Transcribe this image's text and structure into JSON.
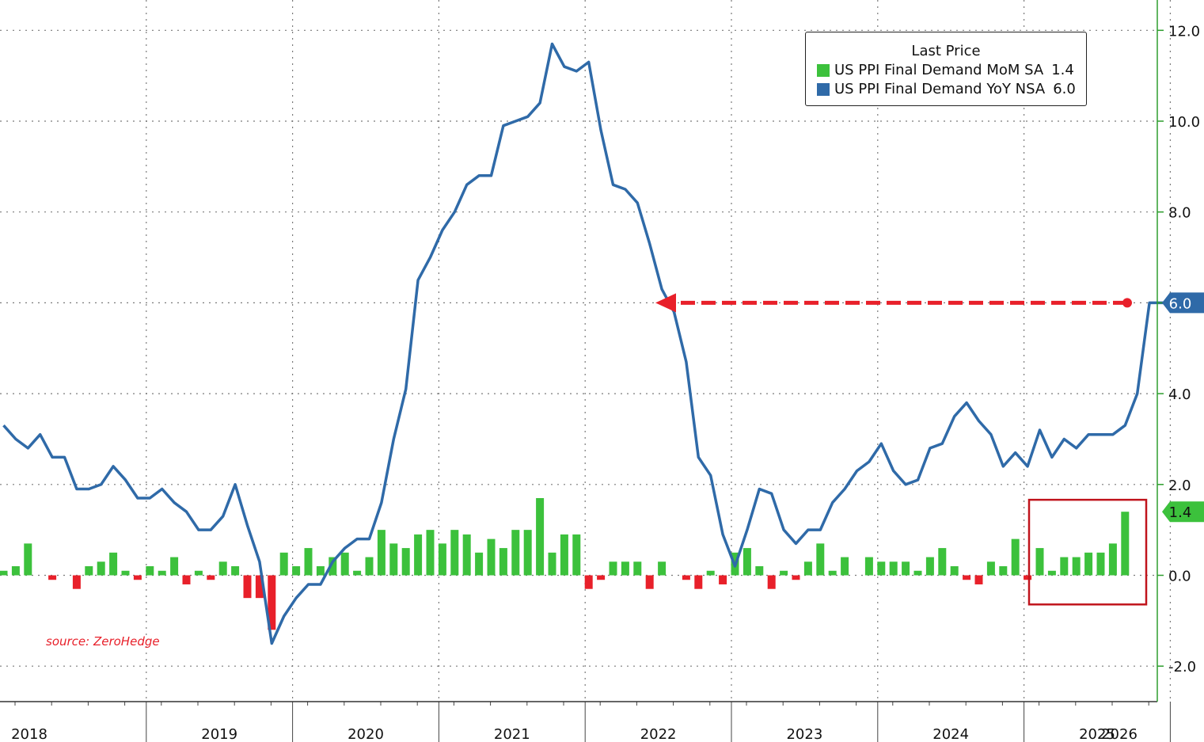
{
  "source_note": "source: ZeroHedge",
  "legend": {
    "title": "Last Price",
    "items": [
      {
        "label": "US PPI Final Demand MoM SA",
        "value": "1.4",
        "color": "#3cc13c"
      },
      {
        "label": "US PPI Final Demand YoY NSA",
        "value": "6.0",
        "color": "#2f6aa8"
      }
    ]
  },
  "badges": {
    "yoy_last": "6.0",
    "mom_last": "1.4"
  },
  "chart_data": {
    "type": "bar+line",
    "title": "",
    "xlabel": "",
    "ylabel": "",
    "ylim": [
      -2.8,
      12.6
    ],
    "yticks": [
      -2.0,
      0.0,
      2.0,
      4.0,
      6.0,
      8.0,
      10.0,
      12.0
    ],
    "ytick_labels": [
      "-2.0",
      "0.0",
      "2.0",
      "4.0",
      "6.0",
      "8.0",
      "10.0",
      "12.0"
    ],
    "year_labels": [
      "2018",
      "2019",
      "2020",
      "2021",
      "2022",
      "2023",
      "2024",
      "2025",
      "2026"
    ],
    "x_start": "2018-01",
    "x_end": "2026-04",
    "grid": true,
    "legend_position": "top-right",
    "positive_bar_color": "#3cc13c",
    "negative_bar_color": "#e8202a",
    "series": [
      {
        "name": "US PPI Final Demand MoM SA",
        "type": "bar",
        "dates": [
          "2018-01",
          "2018-02",
          "2018-03",
          "2018-04",
          "2018-05",
          "2018-06",
          "2018-07",
          "2018-08",
          "2018-09",
          "2018-10",
          "2018-11",
          "2018-12",
          "2019-01",
          "2019-02",
          "2019-03",
          "2019-04",
          "2019-05",
          "2019-06",
          "2019-07",
          "2019-08",
          "2019-09",
          "2019-10",
          "2019-11",
          "2019-12",
          "2020-01",
          "2020-02",
          "2020-03",
          "2020-04",
          "2020-05",
          "2020-06",
          "2020-07",
          "2020-08",
          "2020-09",
          "2020-10",
          "2020-11",
          "2020-12",
          "2021-01",
          "2021-02",
          "2021-03",
          "2021-04",
          "2021-05",
          "2021-06",
          "2021-07",
          "2021-08",
          "2021-09",
          "2021-10",
          "2021-11",
          "2021-12",
          "2022-01",
          "2022-02",
          "2022-03",
          "2022-04",
          "2022-05",
          "2022-06",
          "2022-07",
          "2022-08",
          "2022-09",
          "2022-10",
          "2022-11",
          "2022-12",
          "2023-01",
          "2023-02",
          "2023-03",
          "2023-04",
          "2023-05",
          "2023-06",
          "2023-07",
          "2023-08",
          "2023-09",
          "2023-10",
          "2023-11",
          "2023-12",
          "2024-01",
          "2024-02",
          "2024-03",
          "2024-04",
          "2024-05",
          "2024-06",
          "2024-07",
          "2024-08",
          "2024-09",
          "2024-10",
          "2024-11",
          "2024-12",
          "2025-01",
          "2025-02",
          "2025-03",
          "2025-04",
          "2025-05",
          "2025-06",
          "2025-07",
          "2025-08",
          "2025-09",
          "2025-10",
          "2025-11",
          "2025-12",
          "2026-01",
          "2026-02",
          "2026-03",
          "2026-04"
        ],
        "values": [
          0.1,
          0.2,
          0.7,
          0.0,
          -0.1,
          0.0,
          -0.3,
          0.2,
          0.3,
          0.5,
          0.1,
          -0.1,
          0.2,
          0.1,
          0.4,
          -0.2,
          0.1,
          -0.1,
          0.3,
          0.2,
          -0.5,
          -0.5,
          -1.2,
          0.5,
          0.2,
          0.6,
          0.2,
          0.4,
          0.5,
          0.1,
          0.4,
          1.0,
          0.7,
          0.6,
          0.9,
          1.0,
          0.7,
          1.0,
          0.9,
          0.5,
          0.8,
          0.6,
          1.0,
          1.0,
          1.7,
          0.5,
          0.9,
          0.9,
          -0.3,
          -0.1,
          0.3,
          0.3,
          0.3,
          -0.3,
          0.3,
          0.0,
          -0.1,
          -0.3,
          0.1,
          -0.2,
          0.5,
          0.6,
          0.2,
          -0.3,
          0.1,
          -0.1,
          0.3,
          0.7,
          0.1,
          0.4,
          0.0,
          0.4,
          0.3,
          0.3,
          0.3,
          0.1,
          0.4,
          0.6,
          0.2,
          -0.1,
          -0.2,
          0.3,
          0.2,
          0.8,
          -0.1,
          0.6,
          0.1,
          0.4,
          0.4,
          0.5,
          0.5,
          0.7,
          1.4,
          0.0,
          0.0,
          0.0,
          0.0,
          0.0,
          0.0,
          0.0
        ]
      },
      {
        "name": "US PPI Final Demand YoY NSA",
        "type": "line",
        "color": "#2f6aa8",
        "dates": [
          "2018-01",
          "2018-02",
          "2018-03",
          "2018-04",
          "2018-05",
          "2018-06",
          "2018-07",
          "2018-08",
          "2018-09",
          "2018-10",
          "2018-11",
          "2018-12",
          "2019-01",
          "2019-02",
          "2019-03",
          "2019-04",
          "2019-05",
          "2019-06",
          "2019-07",
          "2019-08",
          "2019-09",
          "2019-10",
          "2019-11",
          "2019-12",
          "2020-01",
          "2020-02",
          "2020-03",
          "2020-04",
          "2020-05",
          "2020-06",
          "2020-07",
          "2020-08",
          "2020-09",
          "2020-10",
          "2020-11",
          "2020-12",
          "2021-01",
          "2021-02",
          "2021-03",
          "2021-04",
          "2021-05",
          "2021-06",
          "2021-07",
          "2021-08",
          "2021-09",
          "2021-10",
          "2021-11",
          "2021-12",
          "2022-01",
          "2022-02",
          "2022-03",
          "2022-04",
          "2022-05",
          "2022-06",
          "2022-07",
          "2022-08",
          "2022-09",
          "2022-10",
          "2022-11",
          "2022-12",
          "2023-01",
          "2023-02",
          "2023-03",
          "2023-04",
          "2023-05",
          "2023-06",
          "2023-07",
          "2023-08",
          "2023-09",
          "2023-10",
          "2023-11",
          "2023-12",
          "2024-01",
          "2024-02",
          "2024-03",
          "2024-04",
          "2024-05",
          "2024-06",
          "2024-07",
          "2024-08",
          "2024-09",
          "2024-10",
          "2024-11",
          "2024-12",
          "2025-01",
          "2025-02",
          "2025-03",
          "2025-04",
          "2025-05",
          "2025-06",
          "2025-07",
          "2025-08",
          "2025-09",
          "2025-10",
          "2025-11",
          "2025-12",
          "2026-01",
          "2026-02",
          "2026-03",
          "2026-04"
        ],
        "values": [
          3.3,
          3.0,
          2.8,
          3.1,
          2.6,
          2.6,
          1.9,
          1.9,
          2.0,
          2.4,
          2.1,
          1.7,
          1.7,
          1.9,
          1.6,
          1.4,
          1.0,
          1.0,
          1.3,
          2.0,
          1.1,
          0.3,
          -1.5,
          -0.9,
          -0.5,
          -0.2,
          -0.2,
          0.3,
          0.6,
          0.8,
          0.8,
          1.6,
          3.0,
          4.1,
          6.5,
          7.0,
          7.6,
          8.0,
          8.6,
          8.8,
          8.8,
          9.9,
          10.0,
          10.1,
          10.4,
          11.7,
          11.2,
          11.1,
          11.3,
          9.8,
          8.6,
          8.5,
          8.2,
          7.3,
          6.3,
          5.8,
          4.7,
          2.6,
          2.2,
          0.9,
          0.2,
          1.0,
          1.9,
          1.8,
          1.0,
          0.7,
          1.0,
          1.0,
          1.6,
          1.9,
          2.3,
          2.5,
          2.9,
          2.3,
          2.0,
          2.1,
          2.8,
          2.9,
          3.5,
          3.8,
          3.4,
          3.1,
          2.4,
          2.7,
          2.4,
          3.2,
          2.6,
          3.0,
          2.8,
          3.1,
          3.1,
          3.1,
          3.3,
          4.0,
          6.0,
          6.0,
          6.0,
          6.0,
          6.0,
          6.0
        ]
      }
    ],
    "annotation": {
      "type": "dashed-arrow",
      "level": 6.0,
      "color": "#e8202a",
      "from_date": "2025-09",
      "to_date": "2022-07"
    },
    "highlight_box": {
      "from_date": "2025-02",
      "to_date": "2025-10",
      "ymin": -0.45,
      "ymax": 1.75,
      "color": "#c0141c"
    }
  }
}
